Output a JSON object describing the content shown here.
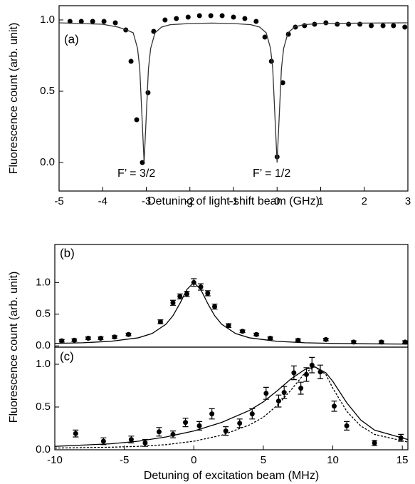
{
  "chart_data": [
    {
      "type": "scatter",
      "panel_label": "(a)",
      "xlabel": "Detuning of light-shift beam (GHz)",
      "ylabel": "Fluorescence count (arb. unit)",
      "annotations": [
        "F’ = 3/2",
        "F’ = 1/2"
      ],
      "xlim": [
        -5,
        3
      ],
      "ylim": [
        -0.2,
        1.1
      ],
      "xticks": [
        -5,
        -4,
        -3,
        -2,
        -1,
        0,
        1,
        2,
        3
      ],
      "yticks": [
        {
          "value": 0,
          "label": "0.0"
        },
        {
          "value": 0.5,
          "label": "0.5"
        },
        {
          "value": 1,
          "label": "1.0"
        }
      ],
      "series": [
        {
          "color": "#000000",
          "style": "markers",
          "x": [
            -4.75,
            -4.49,
            -4.23,
            -3.97,
            -3.71,
            -3.47,
            -3.35,
            -3.22,
            -3.09,
            -2.96,
            -2.83,
            -2.57,
            -2.31,
            -2.04,
            -1.78,
            -1.52,
            -1.26,
            -1.0,
            -0.74,
            -0.48,
            -0.28,
            -0.13,
            0.0,
            0.13,
            0.26,
            0.42,
            0.63,
            0.86,
            1.12,
            1.38,
            1.64,
            1.9,
            2.16,
            2.43,
            2.67,
            2.93
          ],
          "values": [
            0.99,
            0.99,
            0.99,
            0.99,
            0.98,
            0.93,
            0.71,
            0.3,
            0.0,
            0.49,
            0.92,
            1.0,
            1.01,
            1.02,
            1.03,
            1.03,
            1.03,
            1.02,
            1.01,
            0.99,
            0.88,
            0.71,
            0.04,
            0.56,
            0.9,
            0.95,
            0.96,
            0.97,
            0.98,
            0.97,
            0.97,
            0.97,
            0.96,
            0.96,
            0.96,
            0.95
          ]
        },
        {
          "color": "#333333",
          "style": "solid",
          "x": [
            -5,
            -4,
            -3.65,
            -3.45,
            -3.3,
            -3.2,
            -3.15,
            -3.1,
            -3.05,
            -3.0,
            -2.95,
            -2.9,
            -2.8,
            -2.65,
            -2.45,
            -2,
            -1.5,
            -1,
            -0.6,
            -0.4,
            -0.25,
            -0.15,
            -0.1,
            -0.05,
            0,
            0.05,
            0.1,
            0.15,
            0.25,
            0.4,
            0.6,
            1,
            2,
            3
          ],
          "values": [
            0.98,
            0.97,
            0.95,
            0.93,
            0.91,
            0.8,
            0.66,
            0.33,
            0.0,
            0.33,
            0.66,
            0.8,
            0.91,
            0.95,
            0.967,
            0.975,
            0.978,
            0.975,
            0.967,
            0.95,
            0.91,
            0.8,
            0.66,
            0.33,
            0.0,
            0.33,
            0.66,
            0.8,
            0.91,
            0.95,
            0.967,
            0.975,
            0.978,
            0.98
          ]
        }
      ]
    },
    {
      "type": "scatter",
      "panel_label": "(b)",
      "ylabel": "Fluorescence count (arb. unit)",
      "xlim": [
        -10,
        15.4
      ],
      "ylim": [
        -0.02,
        1.6
      ],
      "yticks": [
        {
          "value": 0,
          "label": "0.0"
        },
        {
          "value": 0.5,
          "label": "0.5"
        },
        {
          "value": 1,
          "label": "1.0"
        }
      ],
      "series": [
        {
          "color": "#000000",
          "style": "markers",
          "x": [
            -9.5,
            -8.6,
            -7.6,
            -6.7,
            -5.7,
            -4.7,
            -2.4,
            -1.5,
            -1.0,
            -0.5,
            0,
            0.5,
            1.0,
            1.5,
            2.5,
            3.5,
            4.5,
            5.5,
            7.5,
            9.5,
            11.5,
            13.5,
            15.2
          ],
          "values": [
            0.08,
            0.09,
            0.12,
            0.12,
            0.14,
            0.18,
            0.38,
            0.68,
            0.78,
            0.82,
            1.0,
            0.93,
            0.83,
            0.62,
            0.32,
            0.23,
            0.18,
            0.12,
            0.09,
            0.1,
            0.06,
            0.06,
            0.06
          ],
          "errors": [
            0.02,
            0.02,
            0.02,
            0.02,
            0.02,
            0.02,
            0.03,
            0.04,
            0.04,
            0.04,
            0.06,
            0.05,
            0.04,
            0.04,
            0.03,
            0.02,
            0.02,
            0.02,
            0.02,
            0.02,
            0.02,
            0.02,
            0.02
          ]
        },
        {
          "color": "#000000",
          "style": "solid",
          "x": [
            -10,
            -8,
            -6,
            -4,
            -3,
            -2,
            -1.5,
            -1,
            -0.5,
            0,
            0.5,
            1,
            1.5,
            2,
            3,
            4,
            6,
            8,
            10,
            12,
            15.4
          ],
          "values": [
            0.039,
            0.049,
            0.071,
            0.127,
            0.195,
            0.342,
            0.476,
            0.669,
            0.889,
            1.0,
            0.889,
            0.669,
            0.476,
            0.342,
            0.195,
            0.127,
            0.071,
            0.049,
            0.039,
            0.033,
            0.028
          ]
        }
      ]
    },
    {
      "type": "scatter",
      "panel_label": "(c)",
      "xlabel": "Detuning of excitation beam (MHz)",
      "xlim": [
        -10,
        15.4
      ],
      "ylim": [
        0,
        1.2
      ],
      "xticks": [
        -10,
        -5,
        0,
        5,
        10,
        15
      ],
      "yticks": [
        {
          "value": 0,
          "label": "0.0"
        },
        {
          "value": 0.5,
          "label": "0.5"
        },
        {
          "value": 1,
          "label": "1.0"
        }
      ],
      "series": [
        {
          "color": "#000000",
          "style": "markers",
          "x": [
            -8.5,
            -6.5,
            -4.5,
            -3.5,
            -2.5,
            -1.5,
            -0.6,
            0.4,
            1.3,
            2.3,
            3.3,
            4.2,
            5.2,
            6.1,
            6.5,
            7.2,
            7.7,
            8.1,
            8.5,
            9.1,
            10.1,
            11.0,
            13.0,
            14.9
          ],
          "values": [
            0.19,
            0.1,
            0.12,
            0.08,
            0.21,
            0.18,
            0.32,
            0.28,
            0.42,
            0.22,
            0.31,
            0.42,
            0.66,
            0.57,
            0.67,
            0.9,
            0.72,
            0.88,
            0.99,
            0.91,
            0.51,
            0.28,
            0.08,
            0.14
          ],
          "errors": [
            0.04,
            0.04,
            0.04,
            0.04,
            0.05,
            0.04,
            0.05,
            0.05,
            0.06,
            0.05,
            0.05,
            0.06,
            0.07,
            0.07,
            0.07,
            0.08,
            0.07,
            0.08,
            0.09,
            0.08,
            0.06,
            0.05,
            0.03,
            0.04
          ]
        },
        {
          "color": "#000000",
          "style": "solid",
          "x": [
            -10,
            -6,
            -4,
            -2,
            0,
            2,
            4,
            5,
            6,
            7,
            8,
            8.7,
            9.5,
            10,
            11,
            12,
            13,
            15.4
          ],
          "values": [
            0.04,
            0.07,
            0.1,
            0.15,
            0.22,
            0.32,
            0.46,
            0.56,
            0.69,
            0.83,
            0.94,
            0.97,
            0.9,
            0.8,
            0.55,
            0.35,
            0.23,
            0.12
          ]
        },
        {
          "color": "#000000",
          "style": "dashed",
          "x": [
            -10,
            -6,
            -4,
            -2,
            0,
            2,
            4,
            5,
            6,
            7,
            8,
            8.7,
            9.5,
            10,
            11,
            12,
            13,
            15.4
          ],
          "values": [
            0.02,
            0.03,
            0.04,
            0.06,
            0.1,
            0.17,
            0.29,
            0.38,
            0.52,
            0.7,
            0.9,
            0.97,
            0.88,
            0.72,
            0.45,
            0.28,
            0.18,
            0.09
          ]
        }
      ]
    }
  ]
}
